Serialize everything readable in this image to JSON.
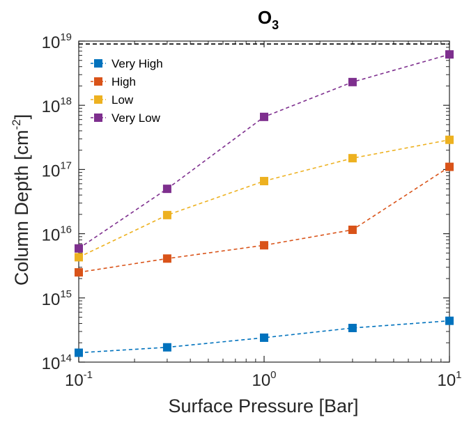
{
  "chart_data": {
    "type": "line",
    "title": "O",
    "title_subscript": "3",
    "xlabel": "Surface Pressure [Bar]",
    "ylabel_main": "Column Depth [cm",
    "ylabel_exp": "-2",
    "ylabel_close": "]",
    "xscale": "log",
    "yscale": "log",
    "xlim": [
      0.1,
      10
    ],
    "ylim": [
      100000000000000.0,
      1e+19
    ],
    "grid": false,
    "legend_position": "top-left",
    "x": [
      0.1,
      0.3,
      1,
      3,
      10
    ],
    "x_ticks": [
      {
        "value": 0.1,
        "base": "10",
        "exp": "-1"
      },
      {
        "value": 1,
        "base": "10",
        "exp": "0"
      },
      {
        "value": 10,
        "base": "10",
        "exp": "1"
      }
    ],
    "y_ticks": [
      {
        "value": 100000000000000.0,
        "base": "10",
        "exp": "14"
      },
      {
        "value": 1000000000000000.0,
        "base": "10",
        "exp": "15"
      },
      {
        "value": 1e+16,
        "base": "10",
        "exp": "16"
      },
      {
        "value": 1e+17,
        "base": "10",
        "exp": "17"
      },
      {
        "value": 1e+18,
        "base": "10",
        "exp": "18"
      },
      {
        "value": 1e+19,
        "base": "10",
        "exp": "19"
      }
    ],
    "reference_line": {
      "value": 9e+18,
      "color": "#000000",
      "style": "dashed"
    },
    "series": [
      {
        "name": "Very High",
        "color": "#0072BD",
        "values": [
          140000000000000.0,
          170000000000000.0,
          240000000000000.0,
          340000000000000.0,
          440000000000000.0
        ]
      },
      {
        "name": "High",
        "color": "#D95319",
        "values": [
          2500000000000000.0,
          4100000000000000.0,
          6600000000000000.0,
          1.15e+16,
          1.1e+17
        ]
      },
      {
        "name": "Low",
        "color": "#EDB120",
        "values": [
          4300000000000000.0,
          1.95e+16,
          6.6e+16,
          1.5e+17,
          2.9e+17
        ]
      },
      {
        "name": "Very Low",
        "color": "#7E2F8E",
        "values": [
          5900000000000000.0,
          5e+16,
          6.6e+17,
          2.3e+18,
          6.2e+18
        ]
      }
    ]
  }
}
